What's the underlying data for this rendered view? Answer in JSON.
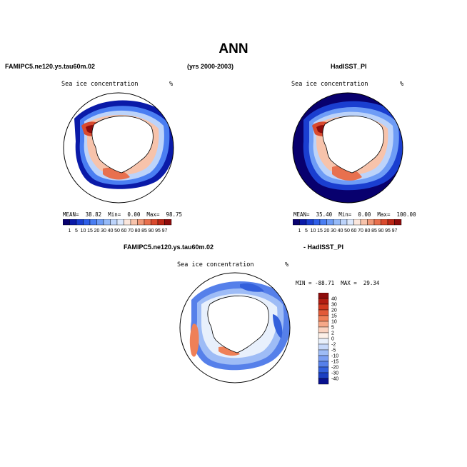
{
  "figure": {
    "title": "ANN",
    "left_header": "FAMIPC5.ne120.ys.tau60m.02",
    "center_header": "(yrs 2000-2003)",
    "right_header": "HadISST_PI"
  },
  "panels": [
    {
      "id": "model",
      "label": "Sea ice concentration",
      "unit": "%",
      "stats": {
        "mean_label": "MEAN=",
        "mean": "38.82",
        "min_label": "Min=",
        "min": "0.00",
        "max_label": "Max=",
        "max": "98.75"
      }
    },
    {
      "id": "obs",
      "label": "Sea ice concentration",
      "unit": "%",
      "stats": {
        "mean_label": "MEAN=",
        "mean": "35.40",
        "min_label": "Min=",
        "min": "0.00",
        "max_label": "Max=",
        "max": "100.00"
      }
    }
  ],
  "diff": {
    "header_left": "FAMIPC5.ne120.ys.tau60m.02",
    "header_right": "- HadISST_PI",
    "label": "Sea ice concentration",
    "unit": "%",
    "stats": {
      "min_label": "MIN =",
      "min": "-88.71",
      "max_label": "MAX =",
      "max": "29.34"
    }
  },
  "colorbar_abs": {
    "ticks": [
      "1",
      "5",
      "10",
      "15",
      "20",
      "30",
      "40",
      "50",
      "60",
      "70",
      "80",
      "85",
      "90",
      "95",
      "97"
    ],
    "colors": [
      "#08006e",
      "#0a1aa8",
      "#1a3ed0",
      "#2e5ee8",
      "#4a7ef2",
      "#6e9cf6",
      "#96baf8",
      "#bcd3fa",
      "#dde8fc",
      "#fbe6dc",
      "#f7c3ab",
      "#f09878",
      "#e8704e",
      "#d94a2e",
      "#bb2716",
      "#8e0c0c"
    ]
  },
  "colorbar_diff": {
    "ticks": [
      "40",
      "30",
      "20",
      "15",
      "10",
      "5",
      "2",
      "0",
      "-2",
      "-5",
      "-10",
      "-15",
      "-20",
      "-30",
      "-40"
    ],
    "colors": [
      "#8e0c0c",
      "#b21d12",
      "#d0391f",
      "#e25a38",
      "#ef8058",
      "#f6a888",
      "#fad2bf",
      "#fdf0e8",
      "#e8f0fc",
      "#c6d8fa",
      "#9ebcf6",
      "#7a9ef2",
      "#5680ea",
      "#3360dc",
      "#1a3ec2",
      "#08108e"
    ]
  }
}
